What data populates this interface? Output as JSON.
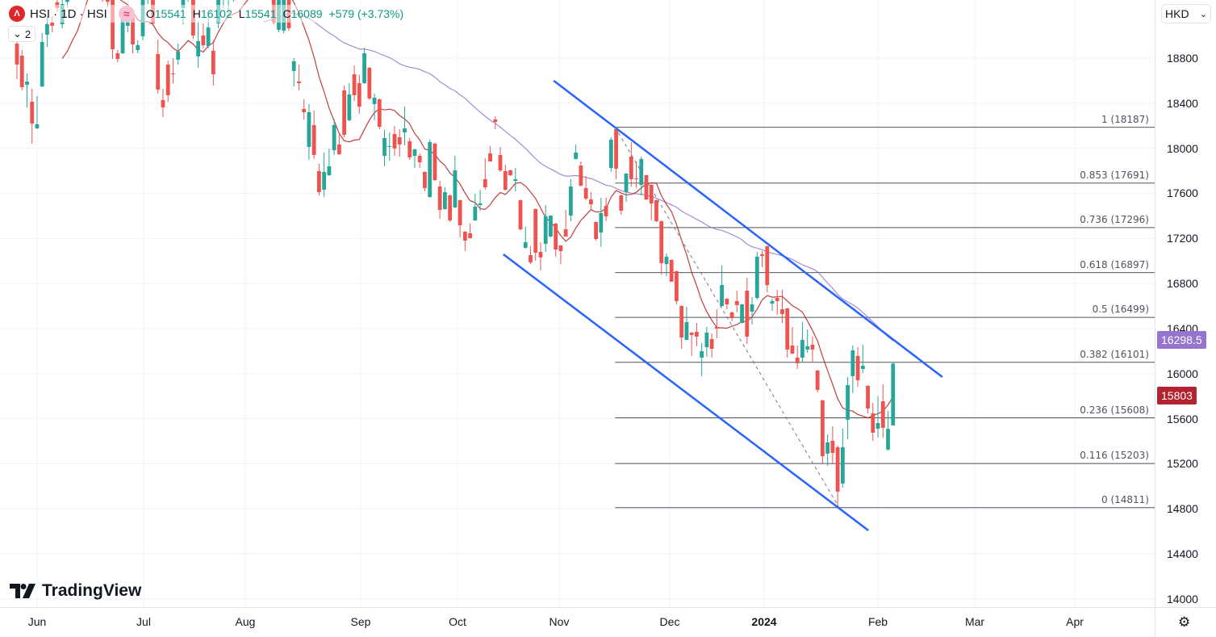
{
  "legend": {
    "symbol": "HSI · 1D · HSI",
    "symbol_icon": "hsi-logo-icon",
    "indicator_icon": "approx-icon",
    "indicator_glyph": "≈",
    "o_label": "O",
    "o": "15541",
    "h_label": "H",
    "h": "16102",
    "l_label": "L",
    "l": "15541",
    "c_label": "C",
    "c": "16089",
    "change": "+579 (+3.73%)",
    "collapsed_count": "2"
  },
  "currency": "HKD",
  "price_tags": [
    {
      "text": "16298.5",
      "color": "#9575cd"
    },
    {
      "text": "15803",
      "color": "#b2232f"
    }
  ],
  "brand": "TradingView",
  "colors": {
    "up": "#26a69a",
    "down": "#ef5350",
    "ma_fast": "#b71c1c",
    "ma_slow": "#9575cd",
    "trendline": "#2962ff",
    "fib": "#50535e"
  },
  "chart_data": {
    "type": "candlestick",
    "title": "",
    "ylim": [
      14000,
      18800
    ],
    "grid": true,
    "y_ticks": [
      "18800",
      "18400",
      "18000",
      "17600",
      "17200",
      "16800",
      "16400",
      "16000",
      "15600",
      "15200",
      "14800",
      "14400",
      "14000"
    ],
    "x_ticks": [
      {
        "label": "Jun"
      },
      {
        "label": "Jul"
      },
      {
        "label": "Aug"
      },
      {
        "label": "Sep"
      },
      {
        "label": "Oct"
      },
      {
        "label": "Nov"
      },
      {
        "label": "Dec"
      },
      {
        "label": "2024",
        "bold": true
      },
      {
        "label": "Feb"
      },
      {
        "label": "Mar"
      },
      {
        "label": "Apr"
      }
    ],
    "candles_ohlc": [
      [
        18929,
        18958,
        18614,
        18743
      ],
      [
        18822,
        18872,
        18514,
        18542
      ],
      [
        18564,
        18664,
        18363,
        18592
      ],
      [
        18413,
        18528,
        18041,
        18220
      ],
      [
        18177,
        18463,
        18170,
        18213
      ],
      [
        18549,
        19022,
        18542,
        18943
      ],
      [
        19008,
        19173,
        18900,
        19101
      ],
      [
        19115,
        19173,
        19029,
        19087
      ],
      [
        19295,
        19352,
        19209,
        19244
      ],
      [
        19101,
        19352,
        19065,
        19280
      ],
      [
        19300,
        19420,
        19250,
        19380
      ],
      [
        19380,
        19520,
        19340,
        19480
      ],
      [
        19480,
        19600,
        19420,
        19450
      ],
      [
        19450,
        19560,
        19380,
        19530
      ],
      [
        19530,
        19700,
        19500,
        19650
      ],
      [
        19650,
        19720,
        19480,
        19510
      ],
      [
        19510,
        19580,
        19390,
        19420
      ],
      [
        19420,
        19500,
        19300,
        19350
      ],
      [
        19350,
        19420,
        19250,
        19300
      ],
      [
        19316,
        19352,
        18793,
        18879
      ],
      [
        18843,
        18872,
        18764,
        18793
      ],
      [
        18843,
        19158,
        18836,
        19144
      ],
      [
        19087,
        19209,
        19029,
        19166
      ],
      [
        19173,
        19209,
        18843,
        18922
      ],
      [
        18872,
        18958,
        18843,
        18915
      ],
      [
        18994,
        19388,
        18958,
        19316
      ],
      [
        19316,
        19531,
        19280,
        19459
      ],
      [
        19352,
        19423,
        19087,
        19108
      ],
      [
        18836,
        18965,
        18485,
        18521
      ],
      [
        18428,
        18528,
        18277,
        18363
      ],
      [
        18743,
        18779,
        18413,
        18471
      ],
      [
        18664,
        18800,
        18578,
        18657
      ],
      [
        18786,
        18929,
        18743,
        18858
      ],
      [
        19244,
        19423,
        19101,
        19388
      ],
      [
        19380,
        19480,
        19300,
        19420
      ],
      [
        19316,
        19373,
        18972,
        19001
      ],
      [
        18815,
        19123,
        18714,
        18951
      ],
      [
        19001,
        19108,
        18886,
        18915
      ],
      [
        18908,
        19173,
        18886,
        19072
      ],
      [
        18865,
        18958,
        18557,
        18657
      ],
      [
        19108,
        19459,
        19065,
        19388
      ],
      [
        19388,
        19520,
        19244,
        19450
      ],
      [
        19450,
        19600,
        19180,
        19500
      ],
      [
        19500,
        19640,
        19300,
        19560
      ],
      [
        19560,
        19700,
        19480,
        19620
      ],
      [
        19620,
        19750,
        19520,
        19580
      ],
      [
        19580,
        19680,
        19450,
        19500
      ],
      [
        19500,
        19620,
        19420,
        19560
      ],
      [
        19560,
        19660,
        19480,
        19520
      ],
      [
        19520,
        19600,
        19380,
        19420
      ],
      [
        19420,
        19500,
        19330,
        19360
      ],
      [
        19316,
        19360,
        19100,
        19115
      ],
      [
        19051,
        19340,
        19030,
        19316
      ],
      [
        19044,
        19330,
        19020,
        19316
      ],
      [
        19316,
        19350,
        19044,
        19065
      ],
      [
        18686,
        18800,
        18549,
        18772
      ],
      [
        18592,
        18743,
        18514,
        18578
      ],
      [
        18349,
        18435,
        18256,
        18320
      ],
      [
        18012,
        18392,
        17898,
        18320
      ],
      [
        18206,
        18335,
        17905,
        17941
      ],
      [
        17797,
        17862,
        17582,
        17611
      ],
      [
        17632,
        17962,
        17568,
        17790
      ],
      [
        17761,
        17998,
        17754,
        17840
      ],
      [
        17983,
        18263,
        17941,
        18206
      ],
      [
        18034,
        18134,
        17941,
        17948
      ],
      [
        18514,
        18557,
        18098,
        18120
      ],
      [
        18249,
        18578,
        18241,
        18478
      ],
      [
        18657,
        18736,
        18420,
        18471
      ],
      [
        18578,
        18650,
        18306,
        18370
      ],
      [
        18578,
        18893,
        18570,
        18843
      ],
      [
        18714,
        18721,
        18428,
        18442
      ],
      [
        18392,
        18485,
        18249,
        18449
      ],
      [
        18435,
        18440,
        18170,
        18191
      ],
      [
        17933,
        18163,
        17840,
        18091
      ],
      [
        18012,
        18141,
        17890,
        18019
      ],
      [
        18127,
        18198,
        17933,
        17998
      ],
      [
        18098,
        18170,
        17926,
        18034
      ],
      [
        18141,
        18370,
        18026,
        18177
      ],
      [
        18062,
        18091,
        17898,
        17919
      ],
      [
        17933,
        17995,
        17826,
        17991
      ],
      [
        17933,
        17955,
        17826,
        17876
      ],
      [
        17790,
        17795,
        17618,
        17647
      ],
      [
        17568,
        18077,
        17560,
        18055
      ],
      [
        18041,
        18050,
        17710,
        17718
      ],
      [
        17661,
        17711,
        17375,
        17453
      ],
      [
        17460,
        17654,
        17455,
        17611
      ],
      [
        17582,
        17590,
        17346,
        17360
      ],
      [
        17475,
        17933,
        17470,
        17804
      ],
      [
        17539,
        17545,
        17210,
        17317
      ],
      [
        17260,
        17265,
        17088,
        17181
      ],
      [
        17246,
        17332,
        17200,
        17203
      ],
      [
        17360,
        17597,
        17355,
        17482
      ],
      [
        17496,
        17632,
        17446,
        17511
      ],
      [
        17726,
        17912,
        17632,
        17654
      ],
      [
        17955,
        18019,
        17950,
        17883
      ],
      [
        18256,
        18284,
        18170,
        18234
      ],
      [
        17941,
        18012,
        17790,
        17804
      ],
      [
        17797,
        17855,
        17625,
        17632
      ],
      [
        17804,
        17810,
        17755,
        17761
      ],
      [
        17711,
        17826,
        17618,
        17726
      ],
      [
        17539,
        17545,
        17270,
        17281
      ],
      [
        17117,
        17303,
        17110,
        17167
      ],
      [
        17052,
        17131,
        16973,
        16988
      ],
      [
        17461,
        17466,
        17002,
        17074
      ],
      [
        17081,
        17167,
        16916,
        17031
      ],
      [
        17152,
        17496,
        17081,
        17396
      ],
      [
        17217,
        17405,
        17210,
        17403
      ],
      [
        17332,
        17338,
        17038,
        17102
      ],
      [
        17138,
        17142,
        16973,
        17088
      ],
      [
        17281,
        17453,
        17276,
        17217
      ],
      [
        17403,
        17726,
        17353,
        17661
      ],
      [
        17905,
        18034,
        17900,
        17962
      ],
      [
        17847,
        17883,
        17661,
        17668
      ],
      [
        17647,
        17754,
        17539,
        17554
      ],
      [
        17546,
        17611,
        17453,
        17503
      ],
      [
        17346,
        17350,
        17181,
        17195
      ],
      [
        17253,
        17561,
        17124,
        17425
      ],
      [
        17489,
        17561,
        17353,
        17396
      ],
      [
        17826,
        18098,
        17790,
        18077
      ],
      [
        18170,
        18185,
        17726,
        17819
      ],
      [
        17582,
        17590,
        17410,
        17446
      ],
      [
        17611,
        17780,
        17525,
        17776
      ],
      [
        17926,
        18055,
        17661,
        17726
      ],
      [
        17733,
        17883,
        17647,
        17726
      ],
      [
        17675,
        17926,
        17582,
        17905
      ],
      [
        17761,
        17765,
        17540,
        17546
      ],
      [
        17675,
        17680,
        17360,
        17511
      ],
      [
        17539,
        17545,
        17346,
        17353
      ],
      [
        17353,
        17358,
        16880,
        16981
      ],
      [
        16973,
        17066,
        16866,
        17038
      ],
      [
        17009,
        17015,
        16815,
        16816
      ],
      [
        16909,
        16915,
        16615,
        16644
      ],
      [
        16601,
        16605,
        16221,
        16321
      ],
      [
        16300,
        16594,
        16295,
        16458
      ],
      [
        16364,
        16368,
        16157,
        16343
      ],
      [
        16371,
        16450,
        16243,
        16329
      ],
      [
        16142,
        16271,
        15978,
        16200
      ],
      [
        16235,
        16415,
        16150,
        16364
      ],
      [
        16307,
        16357,
        16142,
        16221
      ],
      [
        16415,
        16572,
        16314,
        16400
      ],
      [
        16601,
        16959,
        16595,
        16787
      ],
      [
        16665,
        16670,
        16572,
        16615
      ],
      [
        16544,
        16550,
        16465,
        16493
      ],
      [
        16644,
        16737,
        16544,
        16608
      ],
      [
        16450,
        16620,
        16445,
        16615
      ],
      [
        16737,
        16852,
        16264,
        16329
      ],
      [
        16551,
        16680,
        16436,
        16615
      ],
      [
        16672,
        17081,
        16658,
        17038
      ],
      [
        17059,
        17088,
        16945,
        17045
      ],
      [
        17131,
        17135,
        16723,
        16787
      ],
      [
        16622,
        16665,
        16558,
        16644
      ],
      [
        16672,
        16744,
        16522,
        16644
      ],
      [
        16572,
        16744,
        16450,
        16529
      ],
      [
        16579,
        16585,
        16142,
        16214
      ],
      [
        16250,
        16415,
        16175,
        16178
      ],
      [
        16142,
        16250,
        16042,
        16092
      ],
      [
        16142,
        16458,
        16099,
        16300
      ],
      [
        16214,
        16393,
        16185,
        16243
      ],
      [
        16257,
        16329,
        16099,
        16214
      ],
      [
        16028,
        16033,
        15834,
        15856
      ],
      [
        15763,
        15768,
        15197,
        15268
      ],
      [
        15290,
        15462,
        15182,
        15390
      ],
      [
        15404,
        15533,
        15204,
        15297
      ],
      [
        15347,
        15362,
        14811,
        14953
      ],
      [
        15025,
        15512,
        14989,
        15347
      ],
      [
        15591,
        15970,
        15419,
        15899
      ],
      [
        15978,
        16250,
        15827,
        16207
      ],
      [
        16157,
        16235,
        15884,
        15942
      ],
      [
        16042,
        16257,
        16006,
        16071
      ],
      [
        15892,
        15897,
        15648,
        15691
      ],
      [
        15648,
        15741,
        15404,
        15476
      ],
      [
        15512,
        15799,
        15433,
        15562
      ],
      [
        15755,
        15906,
        15433,
        15519
      ],
      [
        15326,
        15670,
        15320,
        15510
      ],
      [
        15541,
        16102,
        15541,
        16089
      ]
    ],
    "fib_levels": [
      {
        "ratio": "1",
        "price": 18187,
        "label": "1 (18187)"
      },
      {
        "ratio": "0.853",
        "price": 17691,
        "label": "0.853 (17691)"
      },
      {
        "ratio": "0.736",
        "price": 17296,
        "label": "0.736 (17296)"
      },
      {
        "ratio": "0.618",
        "price": 16897,
        "label": "0.618 (16897)"
      },
      {
        "ratio": "0.5",
        "price": 16499,
        "label": "0.5 (16499)"
      },
      {
        "ratio": "0.382",
        "price": 16101,
        "label": "0.382 (16101)"
      },
      {
        "ratio": "0.236",
        "price": 15608,
        "label": "0.236 (15608)"
      },
      {
        "ratio": "0.116",
        "price": 15203,
        "label": "0.116 (15203)"
      },
      {
        "ratio": "0",
        "price": 14811,
        "label": "0 (14811)"
      }
    ],
    "trendlines": [
      {
        "style": "solid",
        "from": {
          "bar": 106.6,
          "price": 18600
        },
        "to": {
          "bar": 183.8,
          "price": 15970
        }
      },
      {
        "style": "solid",
        "from": {
          "bar": 96.6,
          "price": 17059
        },
        "to": {
          "bar": 169.1,
          "price": 14609
        }
      },
      {
        "style": "dashed",
        "from": {
          "bar": 118.8,
          "price": 18187
        },
        "to": {
          "bar": 163.3,
          "price": 14811
        }
      }
    ]
  }
}
